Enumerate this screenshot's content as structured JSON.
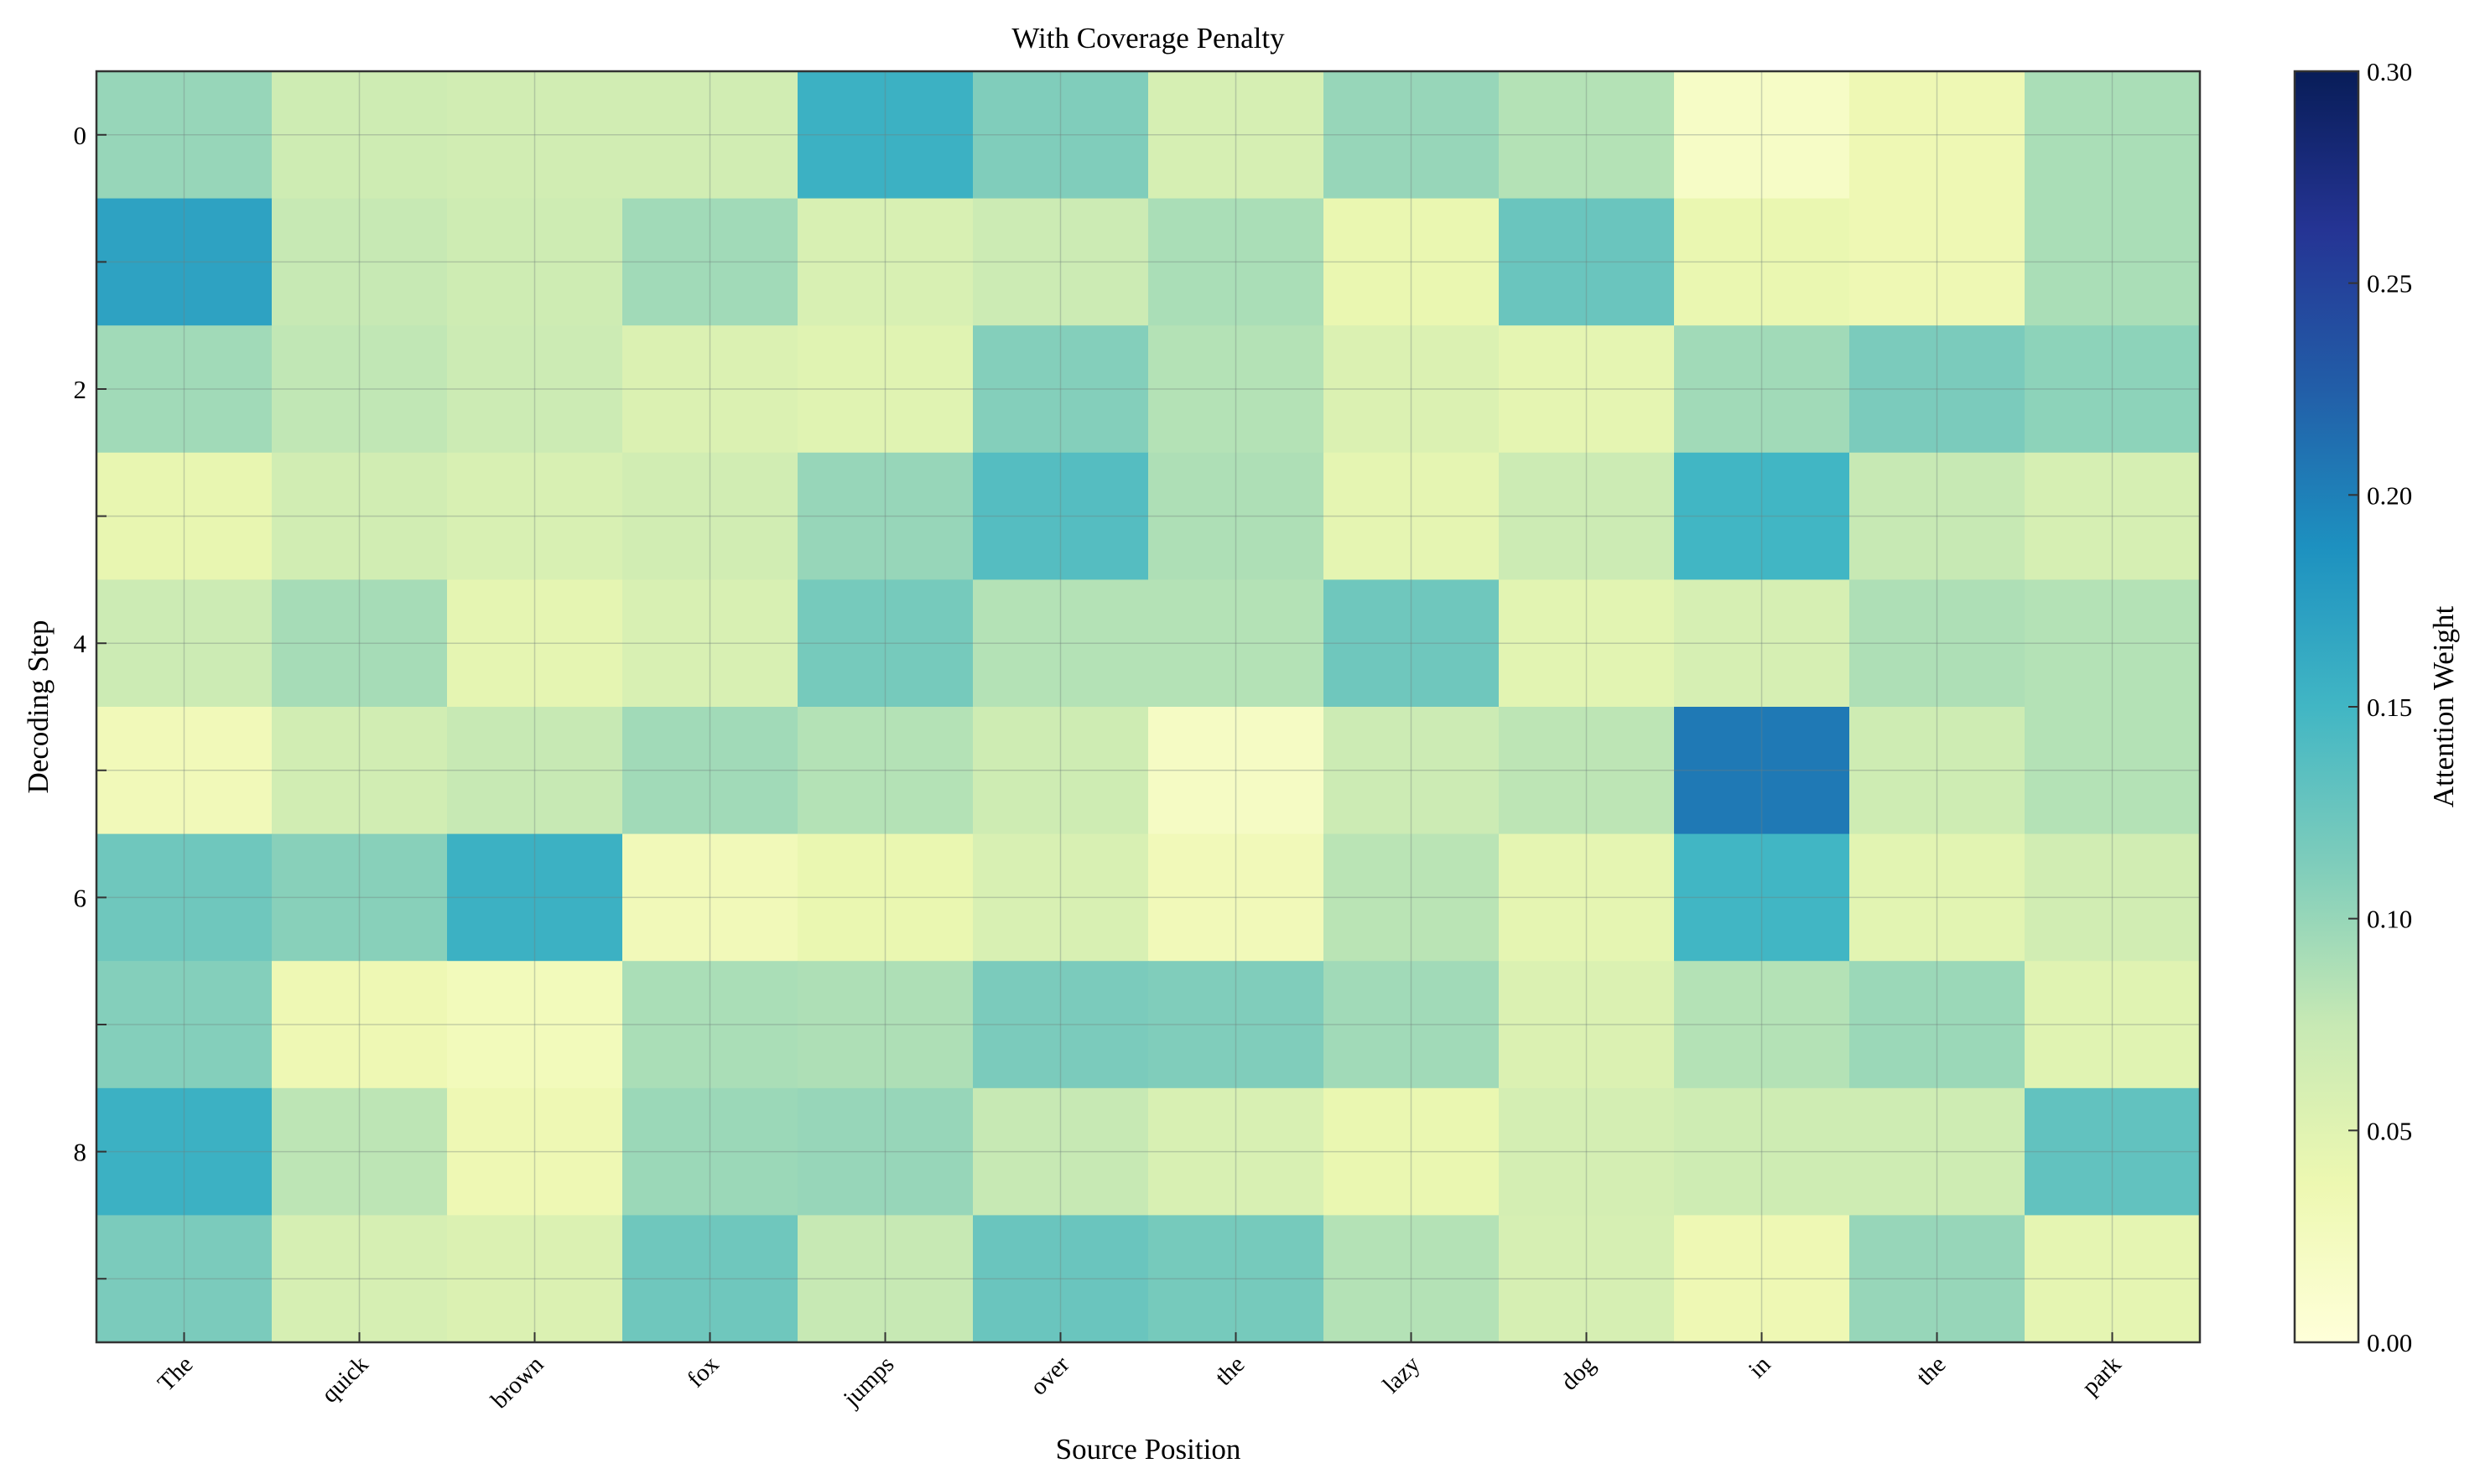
{
  "chart_data": {
    "type": "heatmap",
    "title": "With Coverage Penalty",
    "xlabel": "Source Position",
    "ylabel": "Decoding Step",
    "x_categories": [
      "The",
      "quick",
      "brown",
      "fox",
      "jumps",
      "over",
      "the",
      "lazy",
      "dog",
      "in",
      "the",
      "park"
    ],
    "y_categories": [
      0,
      1,
      2,
      3,
      4,
      5,
      6,
      7,
      8,
      9
    ],
    "y_tick_labels": [
      "0",
      "2",
      "4",
      "6",
      "8"
    ],
    "y_tick_rows": [
      0,
      2,
      4,
      6,
      8
    ],
    "grid": true,
    "values": [
      [
        0.1,
        0.068,
        0.065,
        0.065,
        0.155,
        0.112,
        0.06,
        0.1,
        0.085,
        0.018,
        0.035,
        0.09
      ],
      [
        0.17,
        0.075,
        0.068,
        0.095,
        0.058,
        0.07,
        0.09,
        0.04,
        0.125,
        0.04,
        0.035,
        0.09
      ],
      [
        0.095,
        0.078,
        0.07,
        0.055,
        0.05,
        0.11,
        0.085,
        0.055,
        0.045,
        0.095,
        0.115,
        0.105
      ],
      [
        0.042,
        0.065,
        0.058,
        0.065,
        0.1,
        0.138,
        0.088,
        0.045,
        0.07,
        0.15,
        0.075,
        0.06
      ],
      [
        0.07,
        0.092,
        0.045,
        0.058,
        0.118,
        0.085,
        0.085,
        0.122,
        0.048,
        0.06,
        0.088,
        0.085
      ],
      [
        0.03,
        0.065,
        0.075,
        0.095,
        0.085,
        0.068,
        0.02,
        0.07,
        0.08,
        0.205,
        0.068,
        0.085
      ],
      [
        0.122,
        0.108,
        0.155,
        0.03,
        0.04,
        0.058,
        0.03,
        0.082,
        0.045,
        0.15,
        0.048,
        0.065
      ],
      [
        0.11,
        0.035,
        0.028,
        0.09,
        0.088,
        0.115,
        0.112,
        0.095,
        0.055,
        0.085,
        0.098,
        0.05
      ],
      [
        0.155,
        0.08,
        0.035,
        0.098,
        0.1,
        0.075,
        0.058,
        0.04,
        0.062,
        0.068,
        0.068,
        0.13
      ],
      [
        0.115,
        0.06,
        0.055,
        0.122,
        0.075,
        0.125,
        0.118,
        0.085,
        0.06,
        0.035,
        0.1,
        0.045
      ]
    ],
    "colorbar": {
      "label": "Attention Weight",
      "vmin": 0.0,
      "vmax": 0.3,
      "ticks": [
        "0.00",
        "0.05",
        "0.10",
        "0.15",
        "0.20",
        "0.25",
        "0.30"
      ],
      "colormap": "YlGnBu",
      "stops": [
        "#ffffd9",
        "#edf8b1",
        "#c7e9b4",
        "#7fcdbb",
        "#41b6c4",
        "#1d91c0",
        "#225ea8",
        "#253494",
        "#081d58"
      ]
    }
  }
}
